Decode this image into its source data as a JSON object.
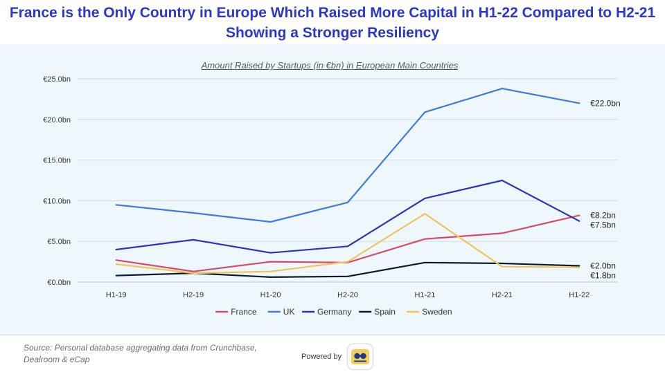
{
  "header": {
    "title_line1": "France is the Only Country in Europe Which Raised More Capital in H1-22 Compared to H2-21",
    "title_line2": "Showing a Stronger Resiliency"
  },
  "footer": {
    "source_line1": "Source: Personal database aggregating data from Crunchbase,",
    "source_line2": "Dealroom & eCap",
    "powered_by": "Powered by",
    "logo_icon": "binoculars-icon"
  },
  "chart_data": {
    "type": "line",
    "title": "Amount Raised by Startups (in €bn) in European Main Countries",
    "xlabel": "",
    "ylabel": "",
    "categories": [
      "H1-19",
      "H2-19",
      "H1-20",
      "H2-20",
      "H1-21",
      "H2-21",
      "H1-22"
    ],
    "ylim": [
      0,
      25
    ],
    "yticks": [
      0,
      5,
      10,
      15,
      20,
      25
    ],
    "ytick_labels": [
      "€0.0bn",
      "€5.0bn",
      "€10.0bn",
      "€15.0bn",
      "€20.0bn",
      "€25.0bn"
    ],
    "grid": true,
    "legend_position": "bottom",
    "series": [
      {
        "name": "France",
        "color": "#d94868",
        "values": [
          2.7,
          1.3,
          2.5,
          2.4,
          5.3,
          6.0,
          8.2
        ],
        "end_label": "€8.2bn"
      },
      {
        "name": "UK",
        "color": "#3f78e0",
        "values": [
          9.5,
          8.5,
          7.4,
          9.8,
          20.9,
          23.8,
          22.0
        ],
        "end_label": "€22.0bn"
      },
      {
        "name": "Germany",
        "color": "#2a34b8",
        "values": [
          4.0,
          5.2,
          3.6,
          4.4,
          10.3,
          12.5,
          7.5
        ],
        "end_label": "€7.5bn"
      },
      {
        "name": "Spain",
        "color": "#0c1a2c",
        "values": [
          0.8,
          1.1,
          0.6,
          0.7,
          2.4,
          2.3,
          2.0
        ],
        "end_label": "€2.0bn"
      },
      {
        "name": "Sweden",
        "color": "#f2c25c",
        "values": [
          2.2,
          1.1,
          1.3,
          2.5,
          8.4,
          1.9,
          1.8
        ],
        "end_label": "€1.8bn"
      }
    ]
  }
}
